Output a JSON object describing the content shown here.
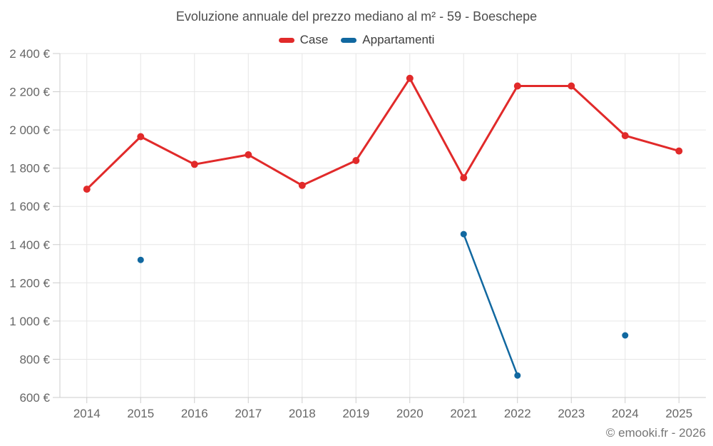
{
  "title": "Evoluzione annuale del prezzo mediano al m² - 59 - Boeschepe",
  "footer": "© emooki.fr - 2026",
  "colors": {
    "background": "#ffffff",
    "grid": "#e6e6e6",
    "axis": "#cccccc",
    "tick_label": "#666666",
    "title_text": "#4d4d4d",
    "legend_text": "#3d3d3d",
    "footer_text": "#757575",
    "case_red": "#e12a2a",
    "appartamenti_blue": "#1168a0"
  },
  "chart_data": {
    "type": "line",
    "title": "Evoluzione annuale del prezzo mediano al m² - 59 - Boeschepe",
    "x": [
      "2014",
      "2015",
      "2016",
      "2017",
      "2018",
      "2019",
      "2020",
      "2021",
      "2022",
      "2023",
      "2024",
      "2025"
    ],
    "series": [
      {
        "name": "Case",
        "color": "#e12a2a",
        "values": [
          1690,
          1965,
          1820,
          1870,
          1710,
          1840,
          2270,
          1750,
          2230,
          2230,
          1970,
          1890
        ]
      },
      {
        "name": "Appartamenti",
        "color": "#1168a0",
        "values": [
          null,
          1320,
          null,
          null,
          null,
          null,
          null,
          1455,
          715,
          null,
          925,
          null
        ]
      }
    ],
    "xlabel": "",
    "ylabel": "",
    "ylim": [
      600,
      2400
    ],
    "ytick_step": 200,
    "ytick_suffix": " €",
    "grid": true,
    "legend_position": "top",
    "legend_entries": [
      "Case",
      "Appartamenti"
    ]
  }
}
